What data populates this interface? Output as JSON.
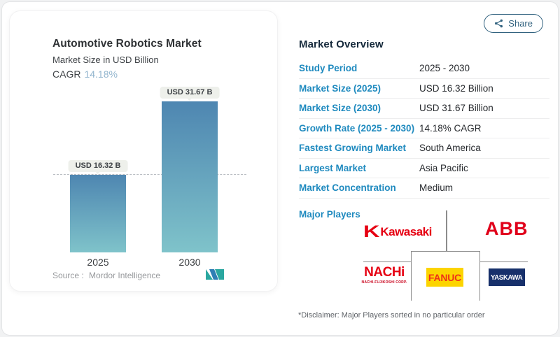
{
  "colors": {
    "accent_blue": "#1f8abf",
    "heading_navy": "#15293b",
    "share_teal": "#31627f",
    "cagr_value_blue": "#92b5ce",
    "bar_gradient_top": "#4e86b1",
    "bar_gradient_bottom": "#7fc3ca",
    "tooltip_bg": "#eef0eb",
    "kawasaki_red": "#e60012",
    "abb_red": "#e0001a",
    "nachi_red": "#e60012",
    "fanuc_yellow": "#fcd400",
    "fanuc_red": "#ee3118",
    "yaskawa_navy": "#17306b",
    "mordor_teal": "#2aa7a0",
    "mordor_blue": "#2f7fb5"
  },
  "share": {
    "label": "Share"
  },
  "chart": {
    "title": "Automotive Robotics Market",
    "subtitle": "Market Size in USD Billion",
    "cagr_label": "CAGR",
    "cagr_value": "14.18%",
    "source_label": "Source :",
    "source_name": "Mordor Intelligence"
  },
  "chart_data": {
    "type": "bar",
    "title": "Automotive Robotics Market",
    "subtitle": "Market Size in USD Billion",
    "unit": "USD Billion",
    "categories": [
      "2025",
      "2030"
    ],
    "values": [
      16.32,
      31.67
    ],
    "bar_labels": [
      "USD 16.32 B",
      "USD 31.67 B"
    ],
    "cagr_percent": 14.18,
    "baseline_dash_at_value": 16.32,
    "ylim": [
      0,
      35
    ],
    "grid": false,
    "legend": false,
    "bar_color_gradient": [
      "#4e86b1",
      "#7fc3ca"
    ]
  },
  "overview": {
    "title": "Market Overview",
    "rows": [
      {
        "label": "Study Period",
        "value": "2025 - 2030"
      },
      {
        "label": "Market Size (2025)",
        "value": "USD 16.32 Billion"
      },
      {
        "label": "Market Size (2030)",
        "value": "USD 31.67 Billion"
      },
      {
        "label": "Growth Rate (2025 - 2030)",
        "value": "14.18% CAGR"
      },
      {
        "label": "Fastest Growing Market",
        "value": "South America"
      },
      {
        "label": "Largest Market",
        "value": "Asia Pacific"
      },
      {
        "label": "Market Concentration",
        "value": "Medium"
      }
    ],
    "major_players_label": "Major Players",
    "players": {
      "kawasaki": {
        "mark": "K",
        "text": "Kawasaki"
      },
      "abb": {
        "text": "ABB"
      },
      "nachi": {
        "text": "NACHi",
        "caption": "NACHI-FUJIKOSHI CORP."
      },
      "fanuc": {
        "text": "FANUC"
      },
      "yaskawa": {
        "text": "YASKAWA"
      }
    },
    "disclaimer": "*Disclaimer: Major Players sorted in no particular order"
  }
}
